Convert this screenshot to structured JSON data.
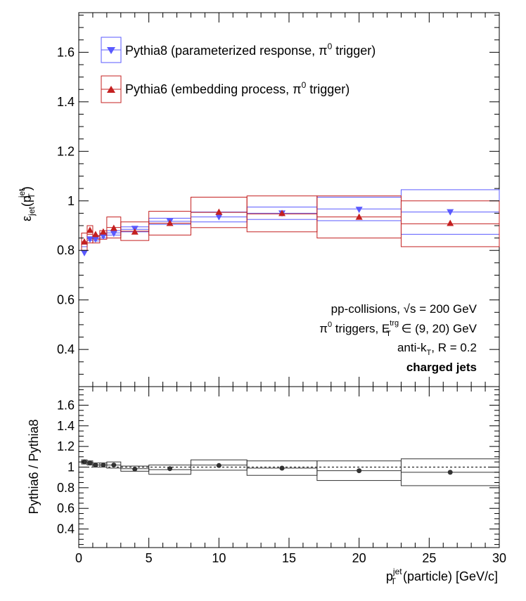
{
  "chart_data": [
    {
      "type": "scatter",
      "panel": "top",
      "ylabel": {
        "base": "ε",
        "sub": "jet",
        "paren_open": "(p",
        "sup": "jet",
        "sub2": "T",
        "paren_close": ")"
      },
      "ylim": [
        0.25,
        1.76
      ],
      "yticks": [
        0.4,
        0.6,
        0.8,
        1.0,
        1.2,
        1.4,
        1.6
      ],
      "ytick_labels": [
        "0.4",
        "0.6",
        "0.8",
        "1",
        "1.2",
        "1.4",
        "1.6"
      ],
      "xlim": [
        0,
        30
      ],
      "legend": {
        "placement": "top-left",
        "entries": [
          {
            "label": "Pythia8 (parameterized response, ",
            "label_pi": "π",
            "label_sup": "0",
            "label_end": " trigger)",
            "color": "#5a5aff",
            "marker": "triangle-down"
          },
          {
            "label": "Pythia6 (embedding process, ",
            "label_pi": "π",
            "label_sup": "0",
            "label_end": " trigger)",
            "color": "#c42020",
            "marker": "triangle-up"
          }
        ]
      },
      "annotations": {
        "line1_pre": "pp-collisions, ",
        "line1_sqrt": "√s",
        "line1_post": " = 200 GeV",
        "line2_pi": "π",
        "line2_sup": "0",
        "line2_mid": " triggers, E",
        "line2_sup2": "trg",
        "line2_sub": "T",
        "line2_post": " ∈ (9, 20) GeV",
        "line3_pre": "anti-k",
        "line3_sub": "T",
        "line3_post": ", R = 0.2",
        "line4": "charged jets"
      },
      "series": [
        {
          "name": "Pythia8 (parameterized response, π0 trigger)",
          "color": "#5a5aff",
          "marker": "triangle-down",
          "x": [
            0.4,
            0.8,
            1.2,
            1.75,
            2.5,
            4.0,
            6.5,
            10.0,
            14.5,
            20.0,
            26.5
          ],
          "y": [
            0.79,
            0.845,
            0.845,
            0.857,
            0.868,
            0.888,
            0.918,
            0.935,
            0.95,
            0.965,
            0.955
          ],
          "box_x": [
            [
              0.2,
              0.6
            ],
            [
              0.6,
              1.0
            ],
            [
              1.0,
              1.5
            ],
            [
              1.5,
              2.0
            ],
            [
              2.0,
              3.0
            ],
            [
              3.0,
              5.0
            ],
            [
              5.0,
              8.0
            ],
            [
              8.0,
              12.0
            ],
            [
              12.0,
              17.0
            ],
            [
              17.0,
              23.0
            ],
            [
              23.0,
              30.0
            ]
          ],
          "box_y": [
            [
              0.815,
              0.835
            ],
            [
              0.84,
              0.855
            ],
            [
              0.838,
              0.858
            ],
            [
              0.85,
              0.87
            ],
            [
              0.862,
              0.88
            ],
            [
              0.875,
              0.895
            ],
            [
              0.905,
              0.93
            ],
            [
              0.915,
              0.955
            ],
            [
              0.925,
              0.975
            ],
            [
              0.92,
              1.015
            ],
            [
              0.865,
              1.045
            ]
          ]
        },
        {
          "name": "Pythia6 (embedding process, π0 trigger)",
          "color": "#c42020",
          "marker": "triangle-up",
          "x": [
            0.4,
            0.8,
            1.2,
            1.75,
            2.5,
            4.0,
            6.5,
            10.0,
            14.5,
            20.0,
            26.5
          ],
          "y": [
            0.835,
            0.882,
            0.865,
            0.875,
            0.89,
            0.875,
            0.91,
            0.955,
            0.95,
            0.935,
            0.91
          ],
          "box_x": [
            [
              0.2,
              0.6
            ],
            [
              0.6,
              1.0
            ],
            [
              1.0,
              1.5
            ],
            [
              1.5,
              2.0
            ],
            [
              2.0,
              3.0
            ],
            [
              3.0,
              5.0
            ],
            [
              5.0,
              8.0
            ],
            [
              8.0,
              12.0
            ],
            [
              12.0,
              17.0
            ],
            [
              17.0,
              23.0
            ],
            [
              23.0,
              30.0
            ]
          ],
          "box_y": [
            [
              0.8,
              0.87
            ],
            [
              0.83,
              0.9
            ],
            [
              0.83,
              0.86
            ],
            [
              0.845,
              0.88
            ],
            [
              0.85,
              0.935
            ],
            [
              0.84,
              0.915
            ],
            [
              0.862,
              0.958
            ],
            [
              0.892,
              1.015
            ],
            [
              0.875,
              1.02
            ],
            [
              0.85,
              1.02
            ],
            [
              0.815,
              1.0
            ]
          ]
        }
      ]
    },
    {
      "type": "scatter",
      "panel": "bottom",
      "ylabel": "Pythia6 / Pythia8",
      "ylim": [
        0.22,
        1.78
      ],
      "yticks": [
        0.4,
        0.6,
        0.8,
        1.0,
        1.2,
        1.4,
        1.6
      ],
      "ytick_labels": [
        "0.4",
        "0.6",
        "0.8",
        "1",
        "1.2",
        "1.4",
        "1.6"
      ],
      "xlim": [
        0,
        30
      ],
      "xticks": [
        0,
        5,
        10,
        15,
        20,
        25,
        30
      ],
      "xtick_labels": [
        "0",
        "5",
        "10",
        "15",
        "20",
        "25",
        "30"
      ],
      "xlabel": {
        "pre": "p",
        "sup": "jet",
        "sub": "T",
        "post": "(particle) [GeV/c]"
      },
      "reference_line": 1.0,
      "series": [
        {
          "name": "Pythia6 / Pythia8",
          "color": "#333333",
          "marker": "circle",
          "x": [
            0.4,
            0.8,
            1.2,
            1.75,
            2.5,
            4.0,
            6.5,
            10.0,
            14.5,
            20.0,
            26.5
          ],
          "y": [
            1.05,
            1.04,
            1.02,
            1.02,
            1.02,
            0.98,
            0.985,
            1.015,
            0.99,
            0.965,
            0.95
          ],
          "box_x": [
            [
              0.2,
              0.6
            ],
            [
              0.6,
              1.0
            ],
            [
              1.0,
              1.5
            ],
            [
              1.5,
              2.0
            ],
            [
              2.0,
              3.0
            ],
            [
              3.0,
              5.0
            ],
            [
              5.0,
              8.0
            ],
            [
              8.0,
              12.0
            ],
            [
              12.0,
              17.0
            ],
            [
              17.0,
              23.0
            ],
            [
              23.0,
              30.0
            ]
          ],
          "box_y": [
            [
              1.03,
              1.07
            ],
            [
              1.02,
              1.06
            ],
            [
              1.0,
              1.04
            ],
            [
              1.0,
              1.04
            ],
            [
              0.99,
              1.05
            ],
            [
              0.96,
              1.01
            ],
            [
              0.93,
              1.02
            ],
            [
              0.97,
              1.07
            ],
            [
              0.92,
              1.06
            ],
            [
              0.87,
              1.06
            ],
            [
              0.82,
              1.08
            ]
          ]
        }
      ]
    }
  ]
}
